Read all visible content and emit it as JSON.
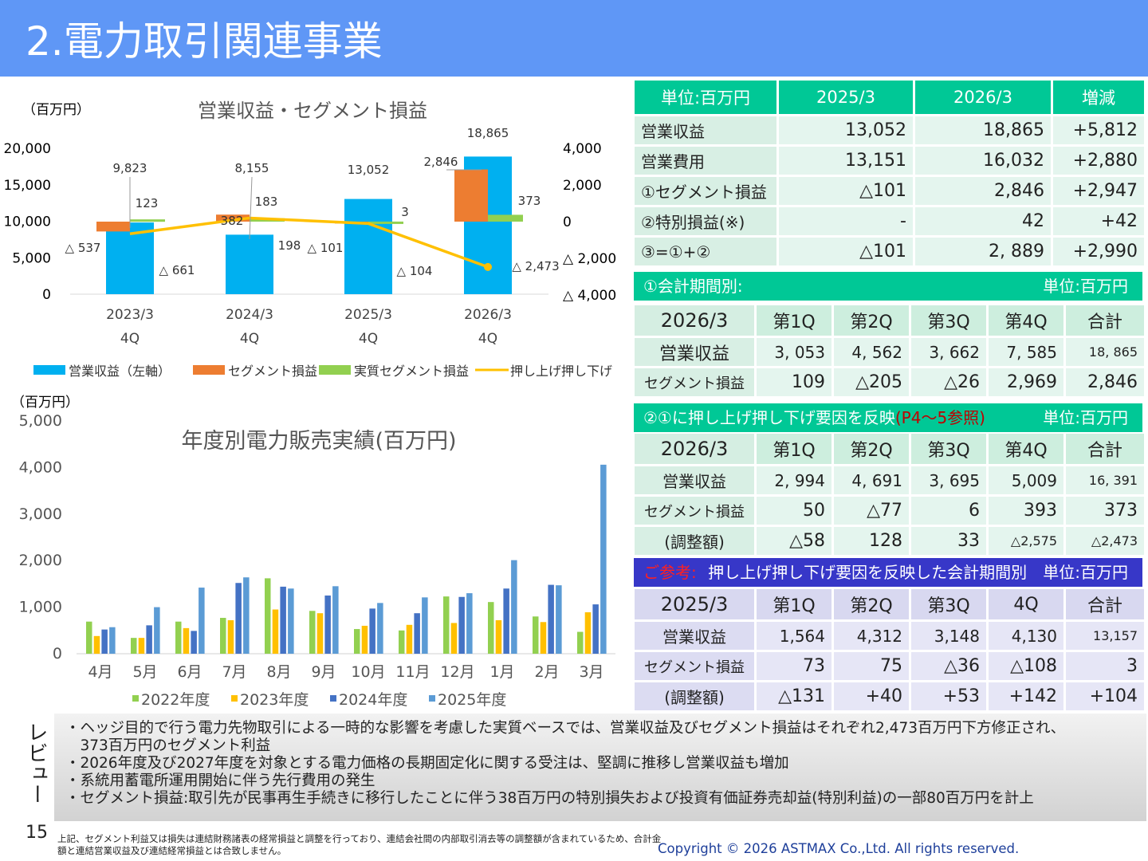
{
  "title": "2.電力取引関連事業",
  "chart1": {
    "title": "営業収益・セグメント損益",
    "unit": "（百万円）",
    "left_ticks": [
      "20,000",
      "15,000",
      "10,000",
      "5,000",
      "0"
    ],
    "right_ticks": [
      "4,000",
      "2,000",
      "0",
      "△ 2,000",
      "△ 4,000"
    ],
    "categories": [
      "2023/3",
      "2024/3",
      "2025/3",
      "2026/3"
    ],
    "category_sub": [
      "4Q",
      "4Q",
      "4Q",
      "4Q"
    ],
    "legend": [
      "営業収益（左軸）",
      "セグメント損益",
      "実質セグメント損益",
      "押し上げ押し下げ"
    ],
    "labels": {
      "rev": [
        "9,823",
        "8,155",
        "13,052",
        "18,865"
      ],
      "seg": [
        "△ 537",
        "382",
        "△ 101",
        "2,846"
      ],
      "real": [
        "123",
        "183",
        "3",
        "373"
      ],
      "push": [
        "△ 661",
        "198",
        "△ 104",
        "△ 2,473"
      ]
    },
    "colors": {
      "rev": "#00b0f0",
      "seg": "#ed7d31",
      "real": "#92d050",
      "push": "#ffc000"
    }
  },
  "chart2": {
    "title": "年度別電力販売実績(百万円)",
    "unit": "（百万円）",
    "ticks": [
      "5,000",
      "4,000",
      "3,000",
      "2,000",
      "1,000",
      "0"
    ],
    "months": [
      "4月",
      "5月",
      "6月",
      "7月",
      "8月",
      "9月",
      "10月",
      "11月",
      "12月",
      "1月",
      "2月",
      "3月"
    ],
    "legend": [
      "2022年度",
      "2023年度",
      "2024年度",
      "2025年度"
    ],
    "colors": [
      "#92d050",
      "#ffc000",
      "#4472c4",
      "#5b9bd5"
    ]
  },
  "chart_data": [
    {
      "type": "bar",
      "title": "営業収益・セグメント損益",
      "categories": [
        "2023/3 4Q",
        "2024/3 4Q",
        "2025/3 4Q",
        "2026/3 4Q"
      ],
      "ylim": [
        0,
        20000
      ],
      "y2lim": [
        -4000,
        4000
      ],
      "series": [
        {
          "name": "営業収益（左軸）",
          "axis": "left",
          "values": [
            9823,
            8155,
            13052,
            18865
          ]
        },
        {
          "name": "セグメント損益",
          "axis": "right",
          "values": [
            -537,
            382,
            -101,
            2846
          ]
        },
        {
          "name": "実質セグメント損益",
          "axis": "right",
          "values": [
            123,
            183,
            3,
            373
          ]
        },
        {
          "name": "押し上げ押し下げ",
          "axis": "right",
          "type": "line",
          "values": [
            -661,
            198,
            -104,
            -2473
          ]
        }
      ]
    },
    {
      "type": "bar",
      "title": "年度別電力販売実績(百万円)",
      "categories": [
        "4月",
        "5月",
        "6月",
        "7月",
        "8月",
        "9月",
        "10月",
        "11月",
        "12月",
        "1月",
        "2月",
        "3月"
      ],
      "ylim": [
        0,
        5000
      ],
      "series": [
        {
          "name": "2022年度",
          "values": [
            690,
            340,
            690,
            770,
            1620,
            920,
            530,
            500,
            1230,
            1110,
            800,
            470
          ]
        },
        {
          "name": "2023年度",
          "values": [
            380,
            340,
            550,
            720,
            950,
            870,
            600,
            620,
            660,
            720,
            680,
            890
          ]
        },
        {
          "name": "2024年度",
          "values": [
            520,
            610,
            490,
            1520,
            1440,
            1250,
            970,
            870,
            1220,
            1400,
            1480,
            1060
          ]
        },
        {
          "name": "2025年度",
          "values": [
            570,
            1000,
            1420,
            1640,
            1400,
            1450,
            1090,
            1210,
            1300,
            2010,
            1470,
            4060
          ]
        }
      ]
    }
  ],
  "summary": {
    "headers": [
      "単位:百万円",
      "2025/3",
      "2026/3",
      "増減"
    ],
    "rows": [
      [
        "営業収益",
        "13,052",
        "18,865",
        "+5,812"
      ],
      [
        "営業費用",
        "13,151",
        "16,032",
        "+2,880"
      ],
      [
        "①セグメント損益",
        "△101",
        "2,846",
        "+2,947"
      ],
      [
        "②特別損益(※)",
        "-",
        "42",
        "+42"
      ],
      [
        "③=①+②",
        "△101",
        "2, 889",
        "+2,990"
      ]
    ]
  },
  "sec1": {
    "title": "①会計期間別:",
    "unit": "単位:百万円",
    "headers": [
      "2026/3",
      "第1Q",
      "第2Q",
      "第3Q",
      "第4Q",
      "合計"
    ],
    "rows": [
      [
        "営業収益",
        "3, 053",
        "4, 562",
        "3, 662",
        "7, 585",
        "18, 865"
      ],
      [
        "セグメント損益",
        "109",
        "△205",
        "△26",
        "2,969",
        "2,846"
      ]
    ]
  },
  "sec2": {
    "title": "②①に押し上げ押し下げ要因を反映",
    "ref": "(P4～5参照)",
    "unit": "単位:百万円",
    "headers": [
      "2026/3",
      "第1Q",
      "第2Q",
      "第3Q",
      "第4Q",
      "合計"
    ],
    "rows": [
      [
        "営業収益",
        "2, 994",
        "4, 691",
        "3, 695",
        "5,009",
        "16, 391"
      ],
      [
        "セグメント損益",
        "50",
        "△77",
        "6",
        "393",
        "373"
      ],
      [
        "(調整額)",
        "△58",
        "128",
        "33",
        "△2,575",
        "△2,473"
      ]
    ]
  },
  "sec3": {
    "prefix": "ご参考:",
    "title": "押し上げ押し下げ要因を反映した会計期間別",
    "unit": "単位:百万円",
    "headers": [
      "2025/3",
      "第1Q",
      "第2Q",
      "第3Q",
      "4Q",
      "合計"
    ],
    "rows": [
      [
        "営業収益",
        "1,564",
        "4,312",
        "3,148",
        "4,130",
        "13,157"
      ],
      [
        "セグメント損益",
        "73",
        "75",
        "△36",
        "△108",
        "3"
      ],
      [
        "(調整額)",
        "△131",
        "+40",
        "+53",
        "+142",
        "+104"
      ]
    ]
  },
  "review": {
    "label": "レビュー",
    "lines": [
      "・ヘッジ目的で行う電力先物取引による一時的な影響を考慮した実質ベースでは、営業収益及びセグメント損益はそれぞれ2,473百万円下方修正され、",
      "　373百万円のセグメント利益",
      "・2026年度及び2027年度を対象とする電力価格の長期固定化に関する受注は、堅調に推移し営業収益も増加",
      "・系統用蓄電所運用開始に伴う先行費用の発生",
      "・セグメント損益:取引先が民事再生手続きに移行したことに伴う38百万円の特別損失および投資有価証券売却益(特別利益)の一部80百万円を計上"
    ]
  },
  "page_number": "15",
  "footnote": "上記、セグメント利益又は損失は連結財務諸表の経常損益と調整を行っており、連結会社間の内部取引消去等の調整額が含まれているため、合計金額と連結営業収益及び連結経常損益とは合致しません。",
  "copyright": "Copyright © 2026 ASTMAX Co.,Ltd. All rights reserved."
}
